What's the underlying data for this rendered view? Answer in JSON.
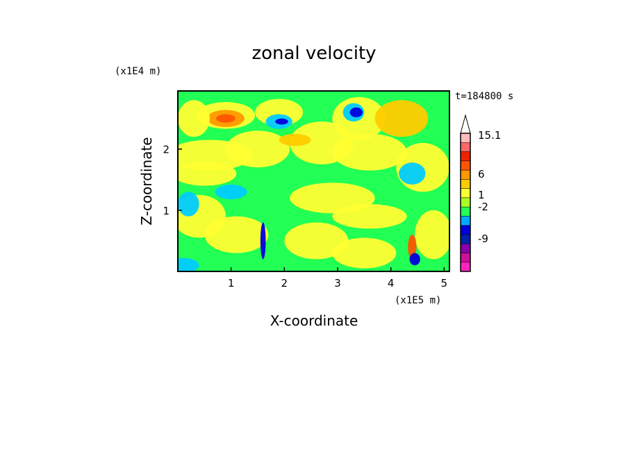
{
  "chart_data": {
    "type": "heatmap",
    "title": "zonal velocity",
    "xlabel": "X-coordinate",
    "ylabel": "Z-coordinate",
    "x_unit": "(x1E5 m)",
    "y_unit": "(x1E4 m)",
    "time_label": "t=184800 s",
    "xlim": [
      0.0,
      5.1
    ],
    "ylim": [
      0.0,
      2.95
    ],
    "x_ticks": [
      1,
      2,
      3,
      4,
      5
    ],
    "y_ticks": [
      1,
      2
    ],
    "colorbar": {
      "tick_labels": [
        "15.1",
        "6",
        "1",
        "-2",
        "-9"
      ],
      "tick_values": [
        15.1,
        6,
        1,
        -2,
        -9
      ],
      "colors": [
        "#ff22bb",
        "#cc1199",
        "#8800aa",
        "#0022aa",
        "#0000dd",
        "#00aaff",
        "#22ff55",
        "#aaff22",
        "#ffff33",
        "#ffcc00",
        "#ff9900",
        "#ff5500",
        "#ee2200",
        "#ff6666",
        "#ffbbbb",
        "#ffffff"
      ],
      "extend": "max"
    },
    "field_colors": {
      "neutral": "#22ff55",
      "positive": [
        "#ffff33",
        "#ffcc00",
        "#ff9900",
        "#ff5500"
      ],
      "negative": [
        "#00ccff",
        "#0000dd"
      ]
    }
  }
}
